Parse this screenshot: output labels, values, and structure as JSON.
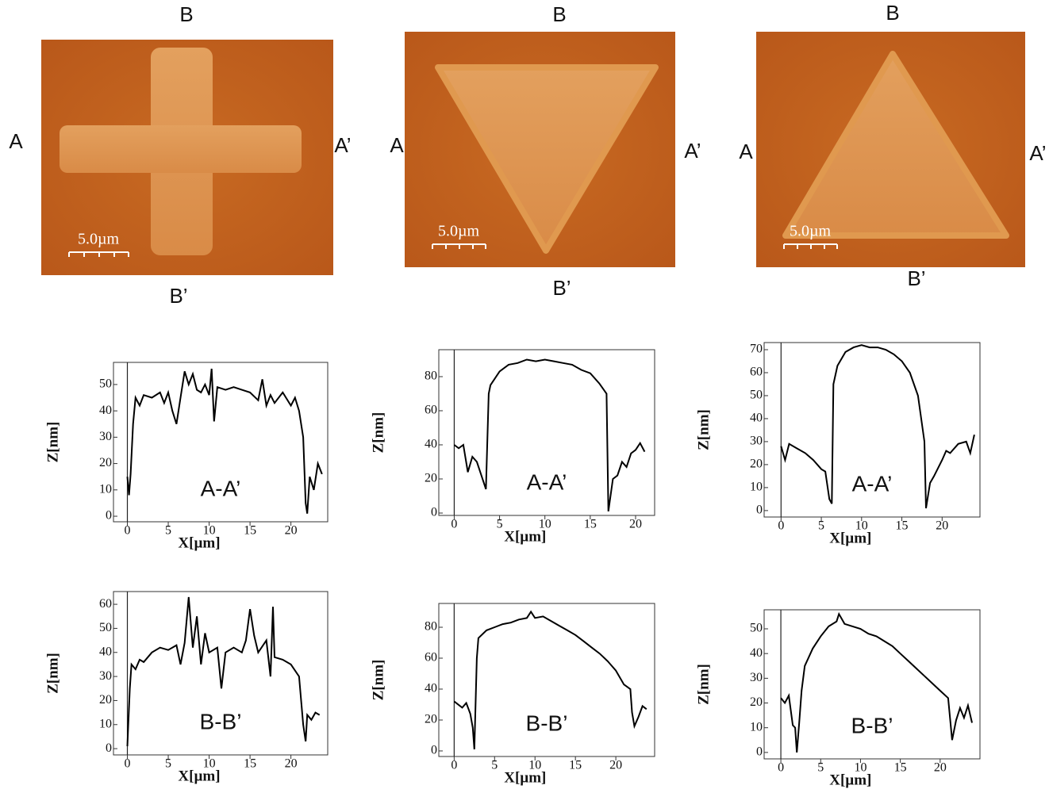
{
  "images": [
    {
      "top": "B",
      "left": "A",
      "right": "A’",
      "bottom": "B’",
      "scale_label": "5.0µm"
    },
    {
      "top": "B",
      "left": "A",
      "right": "A’",
      "bottom": "B’",
      "scale_label": "5.0µm"
    },
    {
      "top": "B",
      "left": "A",
      "right": "A’",
      "bottom": "B’",
      "scale_label": "5.0µm"
    }
  ],
  "chart_data": [
    {
      "type": "line",
      "annotation": "A-A’",
      "xlabel": "X[µm]",
      "ylabel": "Z[nm]",
      "color": "#000000",
      "x": [
        0,
        0.2,
        0.4,
        0.7,
        1,
        1.5,
        2,
        3,
        4,
        4.5,
        5,
        5.5,
        6,
        6.5,
        7,
        7.5,
        8,
        8.5,
        9,
        9.5,
        10,
        10.3,
        10.6,
        11,
        12,
        13,
        14,
        15,
        16,
        16.5,
        17,
        17.5,
        18,
        19,
        20,
        20.5,
        21,
        21.5,
        21.8,
        22,
        22.3,
        22.8,
        23.3,
        23.8
      ],
      "values": [
        15,
        8,
        16,
        35,
        45,
        42,
        46,
        45,
        47,
        43,
        47,
        40,
        35,
        45,
        55,
        50,
        54,
        48,
        47,
        50,
        46,
        56,
        36,
        49,
        48,
        49,
        48,
        47,
        44,
        52,
        42,
        46,
        43,
        47,
        42,
        45,
        40,
        30,
        5,
        1,
        15,
        10,
        20,
        16
      ],
      "xlim": [
        -1.7,
        24.5
      ],
      "ylim": [
        -2.1,
        58.4
      ],
      "xticks": [
        0,
        5,
        10,
        15,
        20
      ],
      "yticks": [
        0,
        10,
        20,
        30,
        40,
        50
      ]
    },
    {
      "type": "line",
      "annotation": "A-A’",
      "xlabel": "X[µm]",
      "ylabel": "Z[nm]",
      "color": "#000000",
      "x": [
        0,
        0.5,
        1,
        1.5,
        2,
        2.5,
        3,
        3.5,
        3.8,
        4,
        5,
        6,
        7,
        8,
        9,
        10,
        11,
        12,
        13,
        14,
        15,
        16,
        16.8,
        17,
        17.5,
        18,
        18.5,
        19,
        19.5,
        20,
        20.5,
        21
      ],
      "values": [
        40,
        38,
        40,
        24,
        33,
        30,
        22,
        14,
        70,
        75,
        83,
        87,
        88,
        90,
        89,
        90,
        89,
        88,
        87,
        84,
        82,
        76,
        70,
        1,
        20,
        22,
        30,
        27,
        35,
        37,
        41,
        36
      ],
      "xlim": [
        -1.7,
        22.1
      ],
      "ylim": [
        -1.4,
        95.8
      ],
      "xticks": [
        0,
        5,
        10,
        15,
        20
      ],
      "yticks": [
        0,
        20,
        40,
        60,
        80
      ]
    },
    {
      "type": "line",
      "annotation": "A-A’",
      "xlabel": "X[µm]",
      "ylabel": "Z[nm]",
      "color": "#000000",
      "x": [
        0,
        0.5,
        1,
        2,
        3,
        4,
        5,
        5.5,
        6,
        6.3,
        6.5,
        7,
        8,
        9,
        10,
        11,
        12,
        13,
        14,
        15,
        16,
        17,
        17.8,
        18,
        18.5,
        19,
        20,
        20.5,
        21,
        22,
        23,
        23.5,
        24
      ],
      "values": [
        28,
        22,
        29,
        27,
        25,
        22,
        18,
        17,
        5,
        3,
        55,
        63,
        69,
        71,
        72,
        71,
        71,
        70,
        68,
        65,
        60,
        50,
        30,
        1,
        12,
        15,
        22,
        26,
        25,
        29,
        30,
        25,
        33
      ],
      "xlim": [
        -2.1,
        24.7
      ],
      "ylim": [
        -2.8,
        73.1
      ],
      "xticks": [
        0,
        5,
        10,
        15,
        20
      ],
      "yticks": [
        0,
        10,
        20,
        30,
        40,
        50,
        60,
        70
      ]
    },
    {
      "type": "line",
      "annotation": "B-B’",
      "xlabel": "X[µm]",
      "ylabel": "Z[nm]",
      "color": "#000000",
      "x": [
        0,
        0.3,
        0.5,
        1,
        1.5,
        2,
        3,
        4,
        5,
        6,
        6.5,
        7,
        7.5,
        8,
        8.5,
        9,
        9.5,
        10,
        11,
        11.5,
        12,
        13,
        14,
        14.5,
        15,
        15.5,
        16,
        17,
        17.5,
        17.8,
        18,
        19,
        20,
        21,
        21.5,
        21.8,
        22,
        22.5,
        23,
        23.5
      ],
      "values": [
        1,
        25,
        35,
        33,
        37,
        36,
        40,
        42,
        41,
        43,
        35,
        44,
        63,
        42,
        55,
        35,
        48,
        40,
        42,
        25,
        40,
        42,
        40,
        45,
        58,
        47,
        40,
        45,
        30,
        59,
        38,
        37,
        35,
        30,
        10,
        3,
        14,
        12,
        15,
        14
      ],
      "xlim": [
        -1.7,
        24.5
      ],
      "ylim": [
        -2.6,
        65.3
      ],
      "xticks": [
        0,
        5,
        10,
        15,
        20
      ],
      "yticks": [
        0,
        10,
        20,
        30,
        40,
        50,
        60
      ]
    },
    {
      "type": "line",
      "annotation": "B-B’",
      "xlabel": "X[µm]",
      "ylabel": "Z[nm]",
      "color": "#000000",
      "x": [
        0,
        1,
        1.5,
        2,
        2.3,
        2.5,
        2.8,
        3,
        4,
        5,
        6,
        7,
        8,
        9,
        9.5,
        10,
        11,
        12,
        13,
        14,
        15,
        16,
        17,
        18,
        19,
        20,
        21,
        21.8,
        22,
        22.3,
        22.8,
        23.3,
        23.8
      ],
      "values": [
        32,
        28,
        31,
        24,
        15,
        1,
        60,
        73,
        78,
        80,
        82,
        83,
        85,
        86,
        90,
        86,
        87,
        84,
        81,
        78,
        75,
        71,
        67,
        63,
        58,
        52,
        43,
        40,
        25,
        16,
        22,
        29,
        27
      ],
      "xlim": [
        -1.9,
        24.8
      ],
      "ylim": [
        -3.6,
        95.4
      ],
      "xticks": [
        0,
        5,
        10,
        15,
        20
      ],
      "yticks": [
        0,
        20,
        40,
        60,
        80
      ]
    },
    {
      "type": "line",
      "annotation": "B-B’",
      "xlabel": "X[µm]",
      "ylabel": "Z[nm]",
      "color": "#000000",
      "x": [
        0,
        0.5,
        1,
        1.5,
        1.8,
        2,
        2.3,
        2.6,
        3,
        4,
        5,
        6,
        7,
        7.3,
        8,
        9,
        10,
        11,
        12,
        13,
        14,
        15,
        16,
        17,
        18,
        19,
        20,
        21,
        21.5,
        22,
        22.5,
        23,
        23.5,
        24
      ],
      "values": [
        22,
        20,
        23,
        11,
        10,
        0,
        12,
        25,
        35,
        42,
        47,
        51,
        53,
        56,
        52,
        51,
        50,
        48,
        47,
        45,
        43,
        40,
        37,
        34,
        31,
        28,
        25,
        22,
        5,
        13,
        18,
        14,
        19,
        12
      ],
      "xlim": [
        -2.1,
        25.0
      ],
      "ylim": [
        -2.6,
        57.7
      ],
      "xticks": [
        0,
        5,
        10,
        15,
        20
      ],
      "yticks": [
        0,
        10,
        20,
        30,
        40,
        50
      ]
    }
  ]
}
